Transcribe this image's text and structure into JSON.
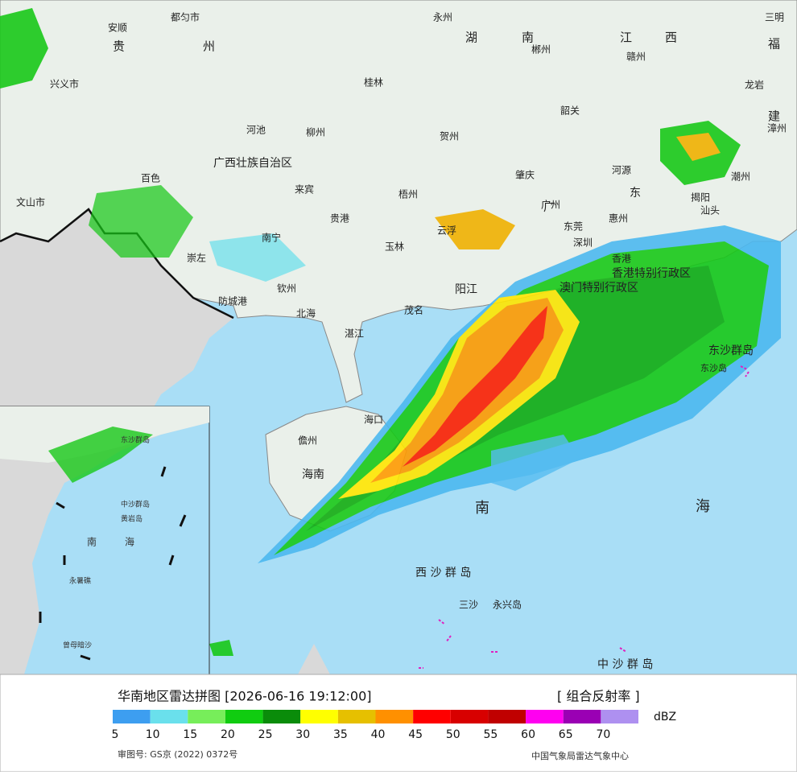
{
  "header": {
    "title": "华南地区雷达拼图 [2026-06-16 19:12:00]",
    "product": "[ 组合反射率 ]"
  },
  "legend": {
    "unit": "dBZ",
    "items": [
      {
        "value": 5,
        "color": "#3d9ef0"
      },
      {
        "value": 10,
        "color": "#6ae0ec"
      },
      {
        "value": 15,
        "color": "#77ee5a"
      },
      {
        "value": 20,
        "color": "#10cc10"
      },
      {
        "value": 25,
        "color": "#0a8c0a"
      },
      {
        "value": 30,
        "color": "#ffff00"
      },
      {
        "value": 35,
        "color": "#e6c000"
      },
      {
        "value": 40,
        "color": "#ff9000"
      },
      {
        "value": 45,
        "color": "#ff0000"
      },
      {
        "value": 50,
        "color": "#d80000"
      },
      {
        "value": 55,
        "color": "#c00000"
      },
      {
        "value": 60,
        "color": "#ff00f0"
      },
      {
        "value": 65,
        "color": "#9a00b4"
      },
      {
        "value": 70,
        "color": "#ae90f0"
      }
    ]
  },
  "footer": {
    "approval": "审图号: GS京 (2022) 0372号",
    "source": "中国气象局雷达气象中心"
  },
  "map": {
    "labels": [
      "都匀市",
      "安顺",
      "贵",
      "州",
      "永州",
      "湖",
      "南",
      "郴州",
      "江",
      "西",
      "赣州",
      "三明",
      "福",
      "龙岩",
      "建",
      "漳州",
      "兴义市",
      "桂林",
      "韶关",
      "河池",
      "柳州",
      "贺州",
      "河源",
      "百色",
      "广西壮族自治区",
      "梧州",
      "云浮",
      "肇庆",
      "广州",
      "东莞",
      "惠州",
      "汕头",
      "潮州",
      "揭阳",
      "来宾",
      "贵港",
      "南宁",
      "玉林",
      "深圳",
      "香港",
      "香港特别行政区",
      "澳门特别行政区",
      "崇左",
      "钦州",
      "防城港",
      "北海",
      "茂名",
      "阳江",
      "湛江",
      "海口",
      "儋州",
      "海南",
      "文山市",
      "东沙群岛",
      "东沙岛",
      "南",
      "海",
      "西 沙 群 岛",
      "三沙",
      "永兴岛",
      "中 沙 群 岛",
      "广",
      "东"
    ]
  },
  "inset": {
    "labels": [
      "南",
      "海",
      "东沙群岛",
      "中沙群岛",
      "黄岩岛",
      "永暑礁",
      "曾母暗沙"
    ]
  }
}
